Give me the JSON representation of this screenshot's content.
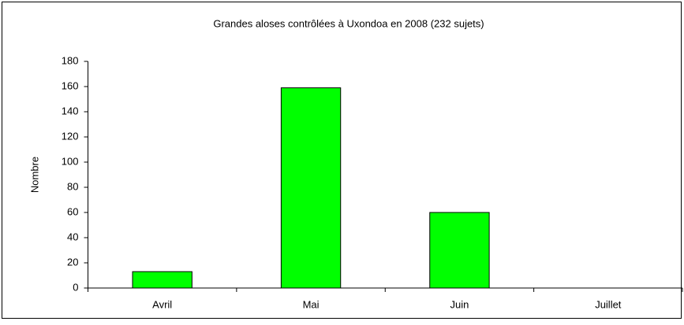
{
  "chart_data": {
    "type": "bar",
    "title": "Grandes aloses contrôlées à Uxondoa en 2008 (232 sujets)",
    "y_label": "Nombre",
    "categories": [
      "Avril",
      "Mai",
      "Juin",
      "Juillet"
    ],
    "values": [
      13,
      159,
      60,
      0
    ],
    "color": "#00ff00",
    "ylim": [
      0,
      180
    ],
    "yticks": [
      0,
      20,
      40,
      60,
      80,
      100,
      120,
      140,
      160,
      180
    ],
    "grid": false
  }
}
